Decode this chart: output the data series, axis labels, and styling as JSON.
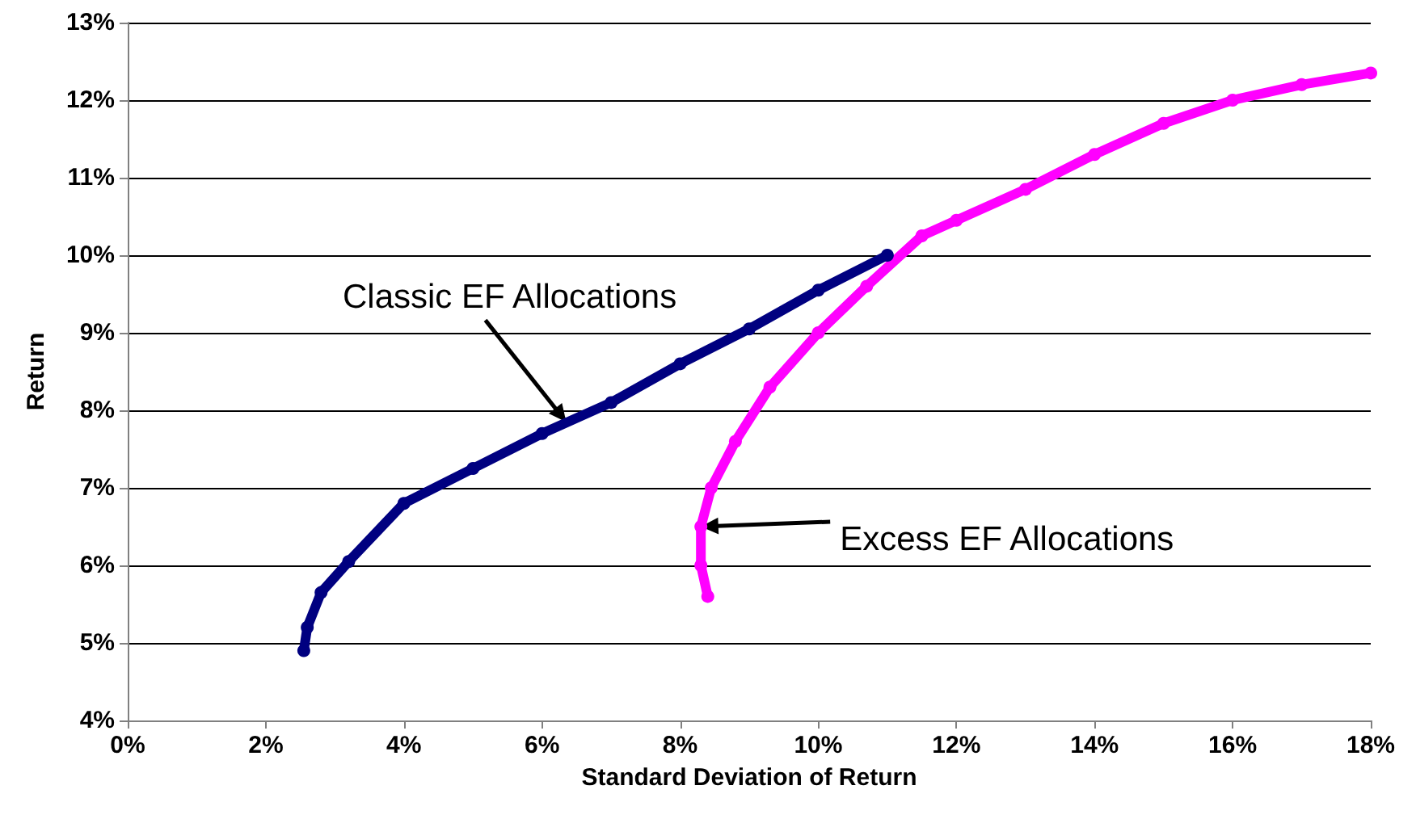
{
  "chart_data": {
    "type": "line",
    "xlabel": "Standard Deviation of Return",
    "ylabel": "Return",
    "xlim": [
      0,
      18
    ],
    "xticks": [
      {
        "value": 0,
        "label": "0%"
      },
      {
        "value": 2,
        "label": "2%"
      },
      {
        "value": 4,
        "label": "4%"
      },
      {
        "value": 6,
        "label": "6%"
      },
      {
        "value": 8,
        "label": "8%"
      },
      {
        "value": 10,
        "label": "10%"
      },
      {
        "value": 12,
        "label": "12%"
      },
      {
        "value": 14,
        "label": "14%"
      },
      {
        "value": 16,
        "label": "16%"
      },
      {
        "value": 18,
        "label": "18%"
      }
    ],
    "ylim": [
      4,
      13
    ],
    "yticks": [
      {
        "value": 4,
        "label": "4%"
      },
      {
        "value": 5,
        "label": "5%"
      },
      {
        "value": 6,
        "label": "6%"
      },
      {
        "value": 7,
        "label": "7%"
      },
      {
        "value": 8,
        "label": "8%"
      },
      {
        "value": 9,
        "label": "9%"
      },
      {
        "value": 10,
        "label": "10%"
      },
      {
        "value": 11,
        "label": "11%"
      },
      {
        "value": 12,
        "label": "12%"
      },
      {
        "value": 13,
        "label": "13%"
      }
    ],
    "grid": "y",
    "marker": "circle",
    "line_style": "solid",
    "series": [
      {
        "color": "#000080",
        "x": [
          2.55,
          2.6,
          2.8,
          3.2,
          4,
          5,
          6,
          7,
          8,
          9,
          10,
          11
        ],
        "values": [
          4.9,
          5.2,
          5.65,
          6.05,
          6.8,
          7.25,
          7.7,
          8.1,
          8.6,
          9.05,
          9.55,
          10.0
        ]
      },
      {
        "color": "#ff00ff",
        "x": [
          8.4,
          8.3,
          8.3,
          8.45,
          8.8,
          9.3,
          10,
          10.7,
          11.5,
          12,
          13,
          14,
          15,
          16,
          17,
          18
        ],
        "values": [
          5.6,
          6.0,
          6.5,
          7.0,
          7.6,
          8.3,
          9.0,
          9.6,
          10.25,
          10.45,
          10.85,
          11.3,
          11.7,
          12.0,
          12.2,
          12.35
        ]
      }
    ],
    "annotations": [
      {
        "text": "Classic EF Allocations",
        "x": 6.35,
        "y": 7.85
      },
      {
        "text": "Excess EF Allocations",
        "x": 8.3,
        "y": 6.5
      }
    ]
  }
}
